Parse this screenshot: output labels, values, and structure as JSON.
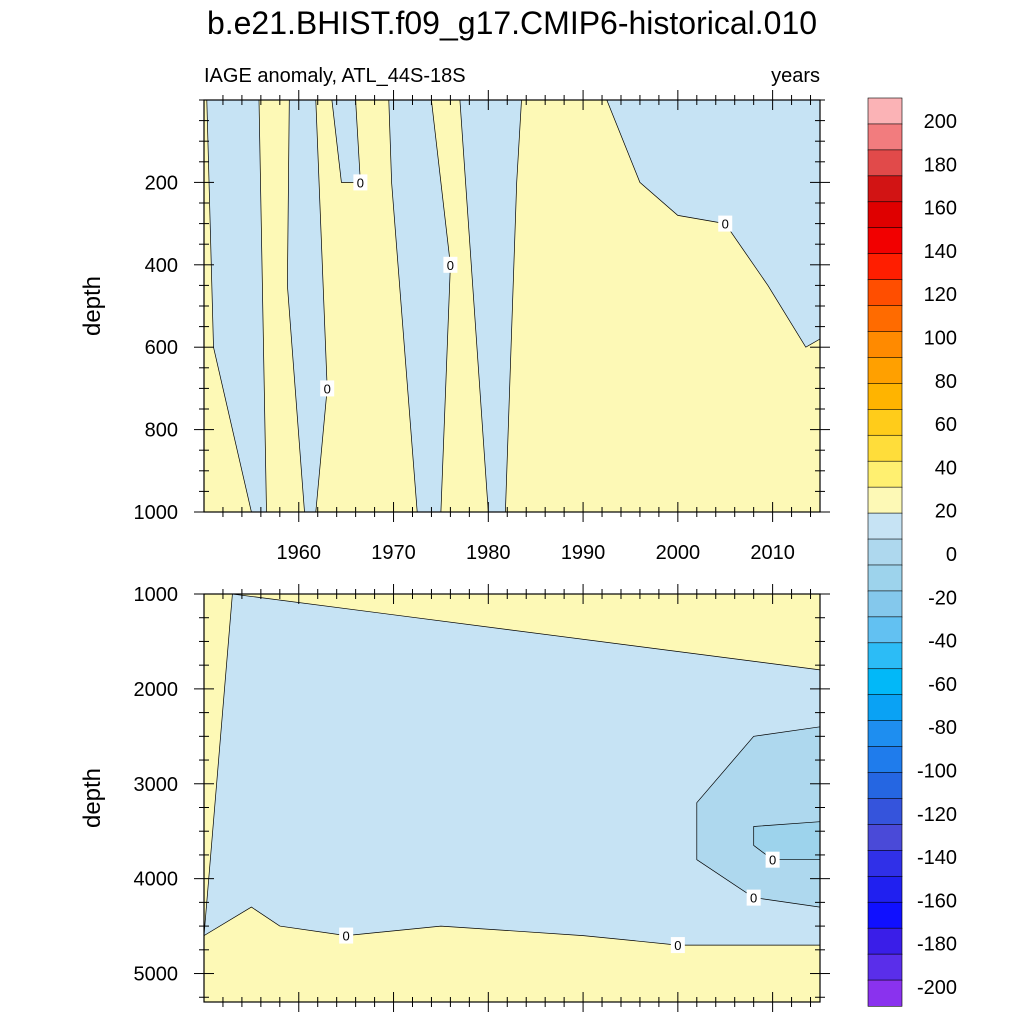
{
  "figure": {
    "title": "b.e21.BHIST.f09_g17.CMIP6-historical.010",
    "subtitle_left": "IAGE anomaly, ATL_44S-18S",
    "subtitle_right": "years"
  },
  "colors": {
    "positive_fill": "#fdf9b6",
    "negative_fill": "#c6e3f4",
    "negative_fill_2": "#aed8ee",
    "negative_fill_3": "#9dd3ec",
    "contour_line": "#000000"
  },
  "chart_data": [
    {
      "type": "heatmap",
      "panel": "upper",
      "xlabel": "",
      "ylabel": "depth",
      "xlim": [
        1950,
        2015
      ],
      "ylim": [
        1000,
        0
      ],
      "x_ticks": [
        1960,
        1970,
        1980,
        1990,
        2000,
        2010
      ],
      "y_ticks": [
        200,
        400,
        600,
        800,
        1000
      ],
      "contour_labels": [
        "0",
        "0",
        "0",
        "0",
        "0",
        "0",
        "0",
        "0",
        "0",
        "0",
        "0",
        "0",
        "0",
        "0",
        "0",
        "0",
        "0",
        "0"
      ],
      "background_value_sign": "positive",
      "regions": [
        {
          "sign": "negative",
          "x": [
            1950.3,
            1955.8,
            1956.6,
            1955.0,
            1951.0
          ],
          "y": [
            0,
            0,
            1000,
            1000,
            600
          ]
        },
        {
          "sign": "negative",
          "x": [
            1959.0,
            1961.8,
            1963.0,
            1961.8,
            1960.6,
            1958.8
          ],
          "y": [
            0,
            0,
            700,
            1000,
            1000,
            450
          ]
        },
        {
          "sign": "negative",
          "x": [
            1963.5,
            1966.0,
            1966.5,
            1964.5
          ],
          "y": [
            0,
            0,
            200,
            200
          ]
        },
        {
          "sign": "negative",
          "x": [
            1969.5,
            1974.0,
            1976.0,
            1975.0,
            1972.5,
            1969.8
          ],
          "y": [
            0,
            0,
            400,
            1000,
            1000,
            200
          ]
        },
        {
          "sign": "negative",
          "x": [
            1977.0,
            1983.5,
            1983.0,
            1981.8,
            1980.0
          ],
          "y": [
            0,
            0,
            200,
            1000,
            1000
          ]
        },
        {
          "sign": "negative",
          "x": [
            1992.5,
            2015.0,
            2015.0,
            2013.5,
            2009.5,
            2005.0,
            2000.0,
            1996.0
          ],
          "y": [
            0,
            0,
            580,
            600,
            450,
            300,
            280,
            200
          ]
        }
      ]
    },
    {
      "type": "heatmap",
      "panel": "lower",
      "xlabel": "",
      "ylabel": "depth",
      "xlim": [
        1950,
        2015
      ],
      "ylim": [
        5300,
        1000
      ],
      "x_ticks": [
        1960,
        1970,
        1980,
        1990,
        2000,
        2010
      ],
      "y_ticks": [
        1000,
        2000,
        3000,
        4000,
        5000
      ],
      "contour_labels": [
        "0",
        "0",
        "0",
        "0",
        "0",
        "0",
        "0"
      ],
      "background_value_sign": "positive",
      "regions": [
        {
          "sign": "negative",
          "levels": "0 to -10",
          "x": [
            1953,
            2015,
            2015,
            2000,
            1990,
            1975,
            1965,
            1958,
            1955,
            1950
          ],
          "y": [
            1000,
            1800,
            4700,
            4700,
            4600,
            4500,
            4600,
            4500,
            4300,
            4600
          ]
        },
        {
          "sign": "negative",
          "levels": "-10 to -20",
          "x": [
            2002,
            2008,
            2015,
            2015,
            2008,
            2002
          ],
          "y": [
            3200,
            2500,
            2400,
            4300,
            4200,
            3800
          ]
        },
        {
          "sign": "negative",
          "levels": "-20 to -30",
          "x": [
            2008,
            2015,
            2015,
            2010,
            2008
          ],
          "y": [
            3450,
            3400,
            3800,
            3800,
            3650
          ]
        }
      ]
    }
  ],
  "colorbar": {
    "labels": [
      "200",
      "180",
      "160",
      "140",
      "120",
      "100",
      "80",
      "60",
      "40",
      "20",
      "0",
      "-20",
      "-40",
      "-60",
      "-80",
      "-100",
      "-120",
      "-140",
      "-160",
      "-180",
      "-200"
    ],
    "colors": [
      "#fbb3b6",
      "#f27c7e",
      "#e14a4a",
      "#d21414",
      "#df0000",
      "#f20000",
      "#ff1e00",
      "#ff4e00",
      "#ff6b00",
      "#ff8a00",
      "#ffa000",
      "#ffb400",
      "#ffcc1a",
      "#ffdd3a",
      "#fff070",
      "#fdf9b6",
      "#c6e3f4",
      "#aed8ee",
      "#9dd3ec",
      "#84c8ec",
      "#62c1f2",
      "#2cbcf6",
      "#02b8f8",
      "#0aa2f4",
      "#1e8ef0",
      "#1f7cec",
      "#2566e2",
      "#3554dc",
      "#4a4ad8",
      "#3030e8",
      "#2020f0",
      "#1010ff",
      "#3a1ee8",
      "#5a2eea",
      "#8a32ee"
    ]
  }
}
